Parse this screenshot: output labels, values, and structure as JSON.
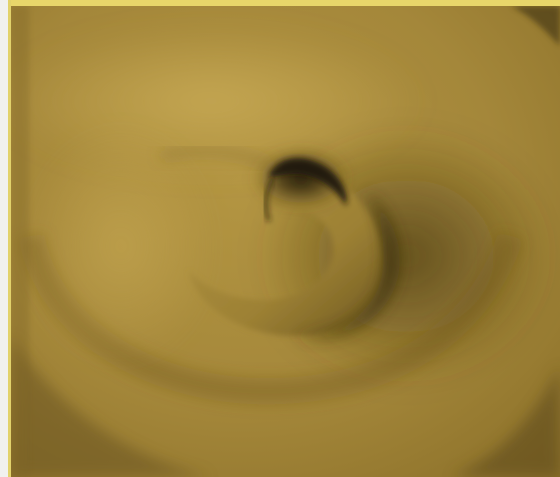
{
  "scene": {
    "subject": "swirl-surface-render",
    "colors": {
      "surface_base": "#9e8232",
      "surface_light": "#b99a45",
      "surface_shadow": "#5c4917",
      "core_dark": "#1d170b",
      "frame_background": "#f1f1ef",
      "frame_accent": "#e8d66a"
    }
  }
}
